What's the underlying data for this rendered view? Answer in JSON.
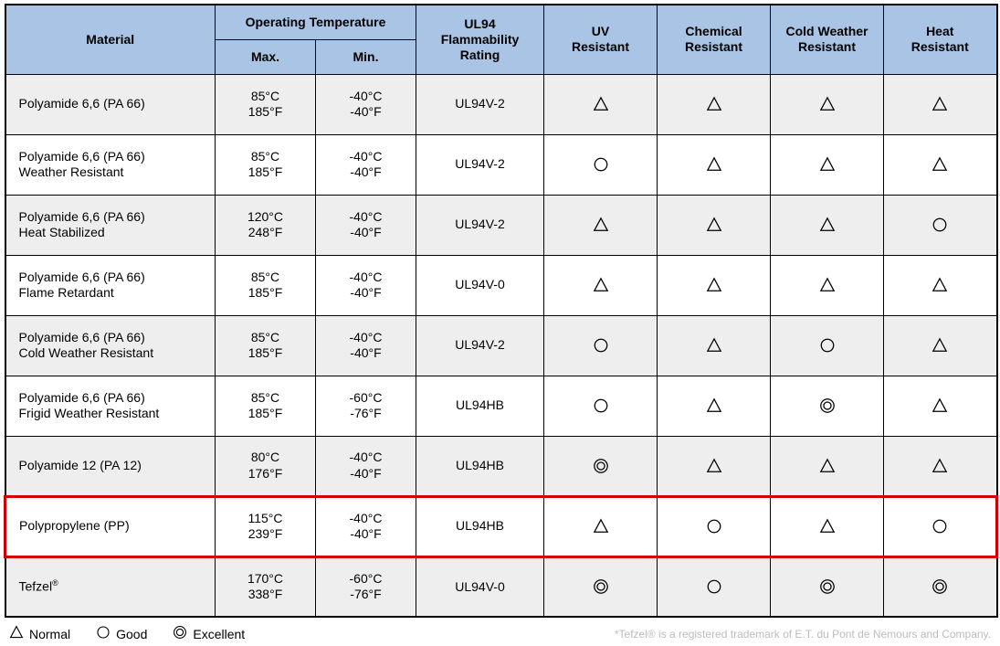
{
  "header_bg": "#a9c4e4",
  "row_even_bg": "#eeeeee",
  "row_odd_bg": "#ffffff",
  "highlight_color": "#d40000",
  "columns": {
    "material": "Material",
    "op_temp": "Operating Temperature",
    "max": "Max.",
    "min": "Min.",
    "ul94": "UL94 Flammability Rating",
    "uv": "UV Resistant",
    "chem": "Chemical Resistant",
    "cold": "Cold Weather Resistant",
    "heat": "Heat Resistant"
  },
  "symbols": {
    "triangle": "Normal",
    "circle": "Good",
    "double_circle": "Excellent"
  },
  "legend": {
    "normal": "Normal",
    "good": "Good",
    "excellent": "Excellent",
    "trademark": "*Tefzel® is a registered trademark of E.T. du Pont de Nemours and Company."
  },
  "rows": [
    {
      "material_lines": [
        "Polyamide 6,6 (PA 66)"
      ],
      "max_lines": [
        "85°C",
        "185°F"
      ],
      "min_lines": [
        "-40°C",
        "-40°F"
      ],
      "ul94": "UL94V-2",
      "uv": "triangle",
      "chem": "triangle",
      "cold": "triangle",
      "heat": "triangle",
      "highlight": false
    },
    {
      "material_lines": [
        "Polyamide 6,6 (PA 66)",
        "Weather Resistant"
      ],
      "max_lines": [
        "85°C",
        "185°F"
      ],
      "min_lines": [
        "-40°C",
        "-40°F"
      ],
      "ul94": "UL94V-2",
      "uv": "circle",
      "chem": "triangle",
      "cold": "triangle",
      "heat": "triangle",
      "highlight": false
    },
    {
      "material_lines": [
        "Polyamide 6,6 (PA 66)",
        "Heat Stabilized"
      ],
      "max_lines": [
        "120°C",
        "248°F"
      ],
      "min_lines": [
        "-40°C",
        "-40°F"
      ],
      "ul94": "UL94V-2",
      "uv": "triangle",
      "chem": "triangle",
      "cold": "triangle",
      "heat": "circle",
      "highlight": false
    },
    {
      "material_lines": [
        "Polyamide 6,6 (PA 66)",
        "Flame Retardant"
      ],
      "max_lines": [
        "85°C",
        "185°F"
      ],
      "min_lines": [
        "-40°C",
        "-40°F"
      ],
      "ul94": "UL94V-0",
      "uv": "triangle",
      "chem": "triangle",
      "cold": "triangle",
      "heat": "triangle",
      "highlight": false
    },
    {
      "material_lines": [
        "Polyamide 6,6 (PA 66)",
        "Cold Weather Resistant"
      ],
      "max_lines": [
        "85°C",
        "185°F"
      ],
      "min_lines": [
        "-40°C",
        "-40°F"
      ],
      "ul94": "UL94V-2",
      "uv": "circle",
      "chem": "triangle",
      "cold": "circle",
      "heat": "triangle",
      "highlight": false
    },
    {
      "material_lines": [
        "Polyamide 6,6 (PA 66)",
        "Frigid Weather Resistant"
      ],
      "max_lines": [
        "85°C",
        "185°F"
      ],
      "min_lines": [
        "-60°C",
        "-76°F"
      ],
      "ul94": "UL94HB",
      "uv": "circle",
      "chem": "triangle",
      "cold": "double_circle",
      "heat": "triangle",
      "highlight": false
    },
    {
      "material_lines": [
        "Polyamide 12 (PA 12)"
      ],
      "max_lines": [
        "80°C",
        "176°F"
      ],
      "min_lines": [
        "-40°C",
        "-40°F"
      ],
      "ul94": "UL94HB",
      "uv": "double_circle",
      "chem": "triangle",
      "cold": "triangle",
      "heat": "triangle",
      "highlight": false
    },
    {
      "material_lines": [
        "Polypropylene (PP)"
      ],
      "max_lines": [
        "115°C",
        "239°F"
      ],
      "min_lines": [
        "-40°C",
        "-40°F"
      ],
      "ul94": "UL94HB",
      "uv": "triangle",
      "chem": "circle",
      "cold": "triangle",
      "heat": "circle",
      "highlight": true
    },
    {
      "material_lines": [
        "Tefzel®"
      ],
      "max_lines": [
        "170°C",
        "338°F"
      ],
      "min_lines": [
        "-60°C",
        "-76°F"
      ],
      "ul94": "UL94V-0",
      "uv": "double_circle",
      "chem": "circle",
      "cold": "double_circle",
      "heat": "double_circle",
      "highlight": false
    }
  ]
}
